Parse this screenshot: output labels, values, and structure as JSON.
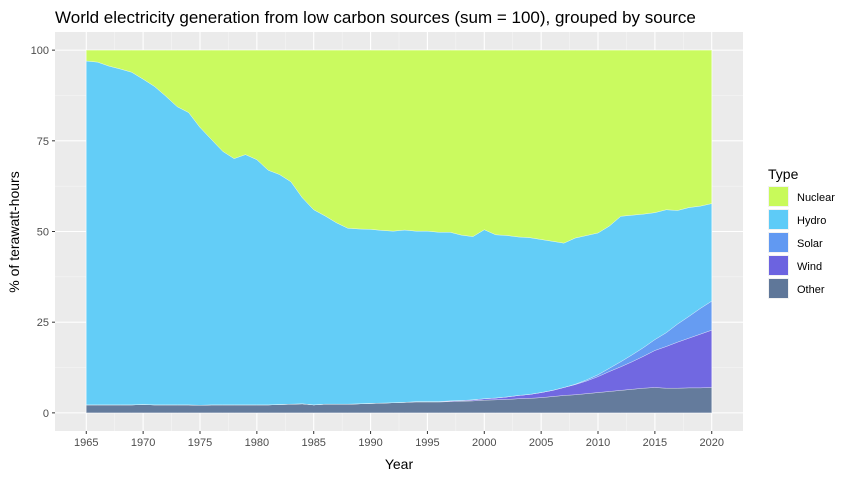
{
  "chart_data": {
    "type": "area",
    "stacked": true,
    "title": "World electricity generation from low carbon sources (sum = 100), grouped by source",
    "xlabel": "Year",
    "ylabel": "% of terawatt-hours",
    "xlim": [
      1965,
      2020
    ],
    "ylim": [
      0,
      100
    ],
    "xticks": [
      "1965",
      "1970",
      "1975",
      "1980",
      "1985",
      "1990",
      "1995",
      "2000",
      "2005",
      "2010",
      "2015",
      "2020"
    ],
    "yticks": [
      "0",
      "25",
      "50",
      "75",
      "100"
    ],
    "grid": true,
    "legend": {
      "title": "Type",
      "position": "right",
      "order": [
        "Nuclear",
        "Hydro",
        "Solar",
        "Wind",
        "Other"
      ]
    },
    "x": [
      1965,
      1966,
      1967,
      1968,
      1969,
      1970,
      1971,
      1972,
      1973,
      1974,
      1975,
      1976,
      1977,
      1978,
      1979,
      1980,
      1981,
      1982,
      1983,
      1984,
      1985,
      1986,
      1987,
      1988,
      1989,
      1990,
      1991,
      1992,
      1993,
      1994,
      1995,
      1996,
      1997,
      1998,
      1999,
      2000,
      2001,
      2002,
      2003,
      2004,
      2005,
      2006,
      2007,
      2008,
      2009,
      2010,
      2011,
      2012,
      2013,
      2014,
      2015,
      2016,
      2017,
      2018,
      2019,
      2020
    ],
    "series": [
      {
        "name": "Other",
        "color": "#5f7799",
        "values": [
          2.2,
          2.2,
          2.2,
          2.2,
          2.2,
          2.3,
          2.2,
          2.2,
          2.2,
          2.2,
          2.1,
          2.2,
          2.2,
          2.2,
          2.2,
          2.2,
          2.2,
          2.3,
          2.4,
          2.5,
          2.2,
          2.4,
          2.4,
          2.4,
          2.5,
          2.6,
          2.7,
          2.8,
          2.9,
          3.0,
          3.0,
          3.0,
          3.1,
          3.2,
          3.3,
          3.5,
          3.6,
          3.7,
          3.9,
          4.0,
          4.2,
          4.5,
          4.8,
          5.0,
          5.3,
          5.6,
          5.9,
          6.2,
          6.5,
          6.8,
          7.0,
          6.8,
          6.8,
          6.9,
          6.9,
          7.0
        ]
      },
      {
        "name": "Wind",
        "color": "#6c63e0",
        "values": [
          0,
          0,
          0,
          0,
          0,
          0,
          0,
          0,
          0,
          0,
          0,
          0,
          0,
          0,
          0,
          0,
          0,
          0,
          0,
          0,
          0,
          0,
          0,
          0,
          0,
          0,
          0,
          0,
          0,
          0.1,
          0.1,
          0.1,
          0.2,
          0.2,
          0.3,
          0.4,
          0.5,
          0.7,
          0.9,
          1.1,
          1.4,
          1.7,
          2.2,
          2.8,
          3.5,
          4.4,
          5.5,
          6.5,
          7.6,
          8.8,
          10.2,
          11.5,
          12.7,
          13.7,
          14.8,
          15.8
        ]
      },
      {
        "name": "Solar",
        "color": "#6199f2",
        "values": [
          0,
          0,
          0,
          0,
          0,
          0,
          0,
          0,
          0,
          0,
          0,
          0,
          0,
          0,
          0,
          0,
          0,
          0,
          0,
          0,
          0,
          0,
          0,
          0,
          0,
          0,
          0,
          0,
          0,
          0,
          0,
          0,
          0,
          0,
          0,
          0,
          0,
          0,
          0,
          0,
          0,
          0,
          0,
          0.1,
          0.3,
          0.5,
          0.9,
          1.4,
          1.9,
          2.4,
          3.0,
          3.8,
          5.0,
          6.0,
          7.1,
          8.0
        ]
      },
      {
        "name": "Hydro",
        "color": "#5ecbf7",
        "values": [
          94.8,
          94.5,
          93.4,
          92.6,
          91.7,
          89.7,
          87.8,
          85.1,
          82.2,
          80.6,
          76.6,
          73.2,
          69.9,
          67.9,
          69.0,
          67.6,
          64.7,
          63.4,
          61.3,
          56.8,
          53.8,
          51.9,
          50.0,
          48.5,
          48.2,
          48.0,
          47.6,
          47.3,
          47.5,
          47.0,
          47.0,
          46.7,
          46.5,
          45.6,
          45.0,
          46.6,
          45.0,
          44.5,
          43.7,
          43.2,
          42.2,
          41.1,
          39.8,
          40.3,
          39.8,
          39.1,
          39.2,
          40.1,
          38.5,
          36.8,
          35.0,
          33.9,
          31.3,
          30.0,
          28.2,
          26.9
        ]
      },
      {
        "name": "Nuclear",
        "color": "#c8fa5a",
        "values": [
          3.0,
          3.3,
          4.4,
          5.2,
          6.1,
          8.0,
          10.0,
          12.7,
          15.6,
          17.2,
          21.3,
          24.6,
          27.9,
          29.9,
          28.8,
          30.2,
          33.1,
          34.3,
          36.3,
          40.7,
          44.0,
          45.7,
          47.6,
          49.1,
          49.3,
          49.4,
          49.7,
          49.9,
          49.6,
          49.9,
          49.9,
          50.2,
          50.2,
          51.0,
          51.4,
          49.5,
          50.9,
          51.1,
          51.5,
          51.7,
          52.2,
          52.7,
          53.2,
          51.8,
          51.1,
          50.4,
          48.5,
          45.8,
          45.5,
          45.2,
          44.8,
          44.0,
          44.2,
          43.4,
          43.0,
          42.3
        ]
      }
    ]
  }
}
